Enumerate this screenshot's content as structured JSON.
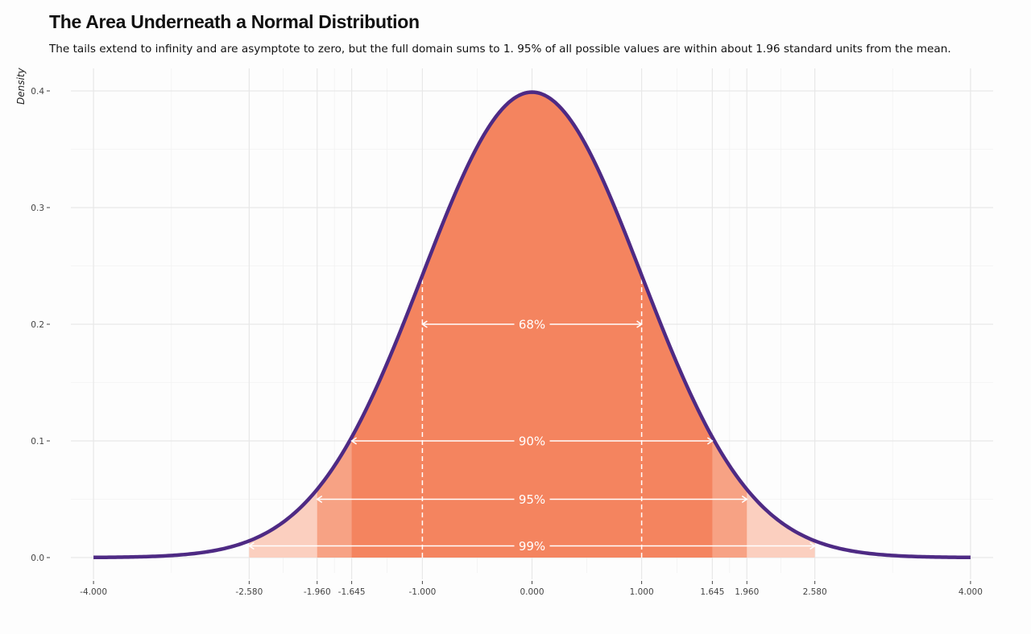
{
  "chart_data": {
    "type": "area",
    "title": "The Area Underneath a Normal Distribution",
    "subtitle": "The tails extend to infinity and are asymptote to zero, but the full domain sums to 1. 95% of all possible values are within about 1.96 standard units from the mean.",
    "ylabel": "Density",
    "xlabel": "",
    "distribution": "standard normal",
    "xlim": [
      -4,
      4
    ],
    "ylim": [
      0,
      0.4
    ],
    "x_ticks": [
      -4,
      -2.58,
      -1.96,
      -1.645,
      -1,
      0,
      1,
      1.645,
      1.96,
      2.58,
      4
    ],
    "x_tick_labels": [
      "-4.000",
      "-2.580",
      "-1.960",
      "-1.645",
      "-1.000",
      "0.000",
      "1.000",
      "1.645",
      "1.960",
      "2.580",
      "4.000"
    ],
    "y_ticks": [
      0,
      0.1,
      0.2,
      0.3,
      0.4
    ],
    "y_tick_labels": [
      "0.0",
      "0.1",
      "0.2",
      "0.3",
      "0.4"
    ],
    "grid": true,
    "intervals": [
      {
        "label": "68%",
        "from": -1,
        "to": 1,
        "arrow_y": 0.2
      },
      {
        "label": "90%",
        "from": -1.645,
        "to": 1.645,
        "arrow_y": 0.1
      },
      {
        "label": "95%",
        "from": -1.96,
        "to": 1.96,
        "arrow_y": 0.05
      },
      {
        "label": "99%",
        "from": -2.58,
        "to": 2.58,
        "arrow_y": 0.01
      }
    ],
    "colors": {
      "curve": "#4e2a84",
      "fill_90": "#f4845f",
      "fill_95": "#f7a284",
      "fill_99": "#fbcfbf",
      "annotation": "#ffffff"
    }
  }
}
